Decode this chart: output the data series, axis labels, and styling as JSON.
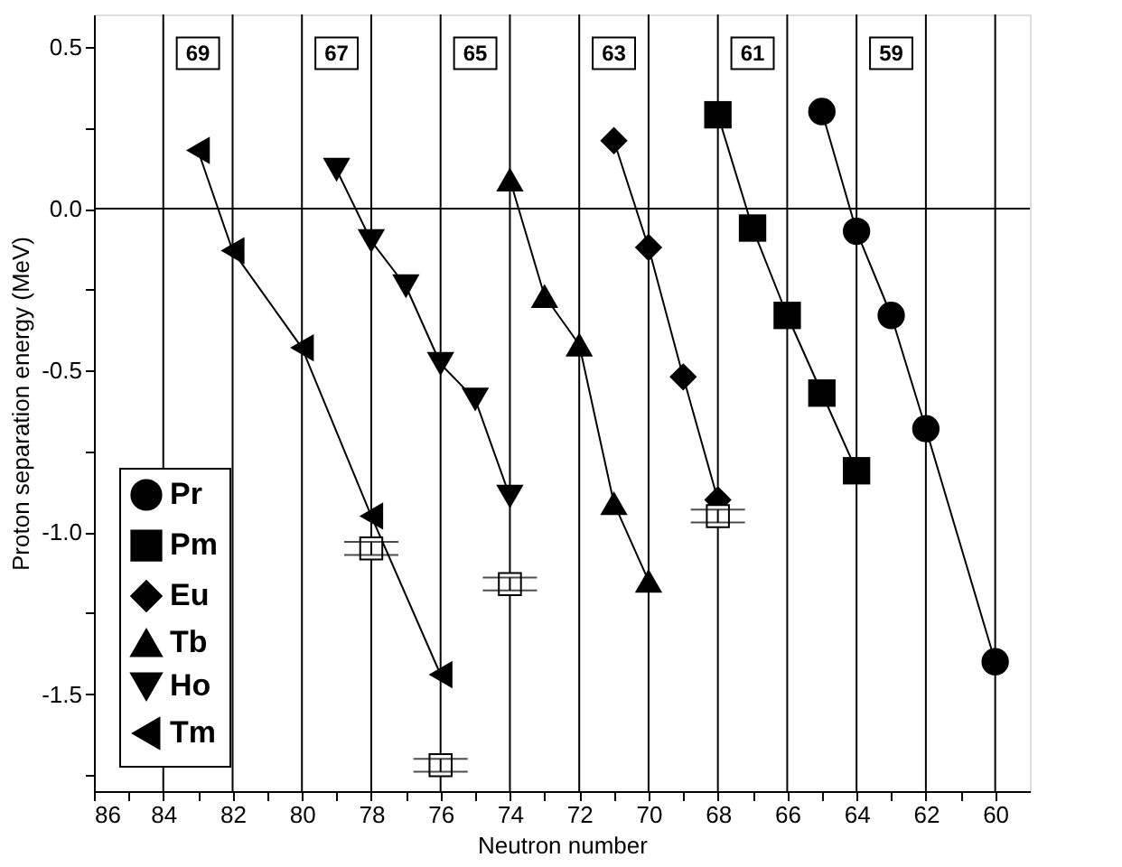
{
  "chart_data": {
    "type": "line",
    "xlabel": "Neutron number",
    "ylabel": "Proton separation energy (MeV)",
    "xlim": [
      86,
      59
    ],
    "ylim": [
      -1.8,
      0.6
    ],
    "xticks": [
      86,
      {
        "value": 85,
        "label": null
      },
      84,
      {
        "value": 83,
        "label": null
      },
      82,
      {
        "value": 81,
        "label": null
      },
      80,
      {
        "value": 79,
        "label": null
      },
      78,
      {
        "value": 77,
        "label": null
      },
      76,
      {
        "value": 75,
        "label": null
      },
      74,
      {
        "value": 73,
        "label": null
      },
      72,
      {
        "value": 71,
        "label": null
      },
      70,
      {
        "value": 69,
        "label": null
      },
      68,
      {
        "value": 67,
        "label": null
      },
      66,
      {
        "value": 65,
        "label": null
      },
      64,
      {
        "value": 63,
        "label": null
      },
      62,
      {
        "value": 61,
        "label": null
      },
      60
    ],
    "yticks": [
      {
        "value": 0.5,
        "label": "0.5"
      },
      {
        "value": 0.25,
        "label": null
      },
      {
        "value": 0,
        "label": "0.0"
      },
      {
        "value": -0.25,
        "label": null
      },
      {
        "value": -0.5,
        "label": "-0.5"
      },
      {
        "value": -0.75,
        "label": null
      },
      {
        "value": -1,
        "label": "-1.0"
      },
      {
        "value": -1.25,
        "label": null
      },
      {
        "value": -1.5,
        "label": "-1.5"
      },
      {
        "value": -1.75,
        "label": null
      }
    ],
    "grid": "x",
    "legend": "bottom left",
    "line_style": "solid",
    "ref_lines": [
      {
        "axis": "y",
        "value": 0,
        "color": "#000000"
      }
    ],
    "annotations": [
      {
        "text": "69",
        "x": 83,
        "y": 0.48
      },
      {
        "text": "67",
        "x": 79,
        "y": 0.48
      },
      {
        "text": "65",
        "x": 75,
        "y": 0.48
      },
      {
        "text": "63",
        "x": 71,
        "y": 0.48
      },
      {
        "text": "61",
        "x": 67,
        "y": 0.48
      },
      {
        "text": "59",
        "x": 63,
        "y": 0.48
      }
    ],
    "series": [
      {
        "name": "Pr",
        "color": "#000000",
        "marker": "circle",
        "x": [
          65,
          64,
          63,
          62,
          60
        ],
        "values": [
          0.3,
          -0.07,
          -0.33,
          -0.68,
          -1.4
        ]
      },
      {
        "name": "Pm",
        "color": "#000000",
        "marker": "square",
        "x": [
          68,
          67,
          66,
          65,
          64
        ],
        "values": [
          0.29,
          -0.06,
          -0.33,
          -0.57,
          -0.81
        ]
      },
      {
        "name": "Eu",
        "color": "#000000",
        "marker": "diamond",
        "x": [
          71,
          70,
          69,
          68
        ],
        "values": [
          0.21,
          -0.12,
          -0.52,
          -0.9
        ]
      },
      {
        "name": "Tb",
        "color": "#000000",
        "marker": "triangle",
        "x": [
          74,
          73,
          72,
          71,
          70
        ],
        "values": [
          0.09,
          -0.27,
          -0.42,
          -0.91,
          -1.15
        ]
      },
      {
        "name": "Ho",
        "color": "#000000",
        "marker": "triangle-down",
        "x": [
          79,
          78,
          77,
          76,
          75,
          74
        ],
        "values": [
          0.12,
          -0.1,
          -0.24,
          -0.48,
          -0.59,
          -0.89
        ]
      },
      {
        "name": "Tm",
        "color": "#000000",
        "marker": "triangle-left",
        "x": [
          83,
          82,
          80,
          78,
          76
        ],
        "values": [
          0.18,
          -0.13,
          -0.43,
          -0.95,
          -1.44
        ]
      },
      {
        "type": "scatter",
        "color": "#000000",
        "marker": "square",
        "x": [
          78,
          76,
          74,
          68
        ],
        "values": [
          -1.05,
          -1.72,
          -1.16,
          -0.95
        ],
        "errors": [
          0.02,
          0.02,
          0.02,
          0.02
        ]
      }
    ]
  }
}
